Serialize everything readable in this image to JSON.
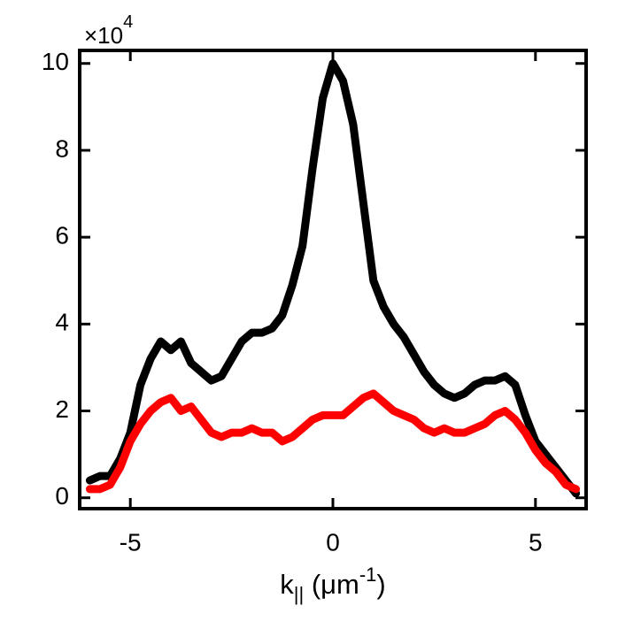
{
  "chart_data": {
    "type": "line",
    "x_label": {
      "base": "k",
      "sub": "||",
      "mid": " (μm",
      "sup": "-1",
      "end": ")"
    },
    "y_multiplier": {
      "base": "×10",
      "sup": "4"
    },
    "x": [
      -6,
      -5.75,
      -5.5,
      -5.25,
      -5,
      -4.75,
      -4.5,
      -4.25,
      -4,
      -3.75,
      -3.5,
      -3.25,
      -3,
      -2.75,
      -2.5,
      -2.25,
      -2,
      -1.75,
      -1.5,
      -1.25,
      -1,
      -0.75,
      -0.5,
      -0.25,
      0,
      0.25,
      0.5,
      0.75,
      1,
      1.25,
      1.5,
      1.75,
      2,
      2.25,
      2.5,
      2.75,
      3,
      3.25,
      3.5,
      3.75,
      4,
      4.25,
      4.5,
      4.75,
      5,
      5.25,
      5.5,
      5.75,
      6
    ],
    "series": [
      {
        "color": "#000000",
        "values": [
          0.4,
          0.5,
          0.5,
          0.9,
          1.5,
          2.6,
          3.2,
          3.6,
          3.4,
          3.6,
          3.1,
          2.9,
          2.7,
          2.8,
          3.2,
          3.6,
          3.8,
          3.8,
          3.9,
          4.2,
          4.9,
          5.8,
          7.6,
          9.2,
          10.0,
          9.6,
          8.6,
          6.8,
          5.0,
          4.4,
          4.0,
          3.7,
          3.3,
          2.9,
          2.6,
          2.4,
          2.3,
          2.4,
          2.6,
          2.7,
          2.7,
          2.8,
          2.6,
          1.9,
          1.3,
          1.0,
          0.7,
          0.4,
          0.1
        ]
      },
      {
        "color": "#ff0000",
        "values": [
          0.2,
          0.2,
          0.3,
          0.7,
          1.3,
          1.7,
          2.0,
          2.2,
          2.3,
          2.0,
          2.1,
          1.8,
          1.5,
          1.4,
          1.5,
          1.5,
          1.6,
          1.5,
          1.5,
          1.3,
          1.4,
          1.6,
          1.8,
          1.9,
          1.9,
          1.9,
          2.1,
          2.3,
          2.4,
          2.2,
          2.0,
          1.9,
          1.8,
          1.6,
          1.5,
          1.6,
          1.5,
          1.5,
          1.6,
          1.7,
          1.9,
          2.0,
          1.8,
          1.5,
          1.1,
          0.8,
          0.6,
          0.3,
          0.2
        ]
      }
    ],
    "xlim": [
      -6.25,
      6.25
    ],
    "ylim": [
      -0.25,
      10.3
    ],
    "xticks": [
      -5,
      0,
      5
    ],
    "yticks": [
      0,
      2,
      4,
      6,
      8,
      10
    ]
  }
}
